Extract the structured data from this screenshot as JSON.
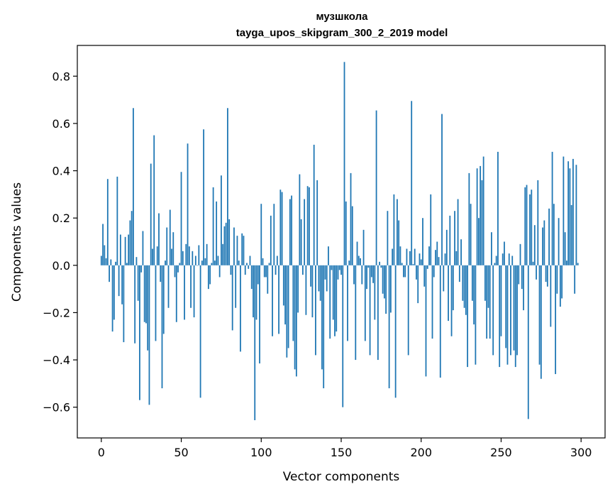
{
  "chart_data": {
    "type": "bar",
    "title_lines": [
      "музшкола",
      "tayga_upos_skipgram_300_2_2019 model"
    ],
    "xlabel": "Vector components",
    "ylabel": "Components values",
    "xlim": [
      -15,
      315
    ],
    "ylim": [
      -0.73,
      0.93
    ],
    "xticks": [
      0,
      50,
      100,
      150,
      200,
      250,
      300
    ],
    "yticks": [
      -0.6,
      -0.4,
      -0.2,
      0.0,
      0.2,
      0.4,
      0.6,
      0.8
    ],
    "ytick_labels": [
      "−0.6",
      "−0.4",
      "−0.2",
      "0.0",
      "0.2",
      "0.4",
      "0.6",
      "0.8"
    ],
    "xtick_labels": [
      "0",
      "50",
      "100",
      "150",
      "200",
      "250",
      "300"
    ],
    "color": "#1f77b4",
    "values": [
      0.04,
      0.175,
      0.085,
      0.03,
      0.365,
      -0.07,
      0.025,
      -0.28,
      -0.23,
      0.015,
      0.375,
      -0.13,
      0.13,
      -0.165,
      -0.325,
      0.12,
      0.01,
      0.13,
      0.19,
      0.23,
      0.665,
      -0.33,
      0.035,
      -0.15,
      -0.57,
      -0.03,
      0.145,
      -0.24,
      -0.245,
      -0.36,
      -0.59,
      0.43,
      0.07,
      0.55,
      -0.32,
      0.08,
      0.22,
      -0.07,
      -0.52,
      -0.29,
      0.02,
      0.16,
      -0.18,
      0.235,
      0.07,
      0.14,
      -0.05,
      -0.24,
      -0.03,
      0.01,
      0.395,
      0.06,
      -0.23,
      0.09,
      0.515,
      0.08,
      -0.18,
      0.06,
      -0.22,
      0.04,
      0.0,
      0.085,
      -0.56,
      0.02,
      0.575,
      0.03,
      0.09,
      -0.1,
      -0.08,
      0.01,
      0.33,
      0.02,
      0.27,
      0.04,
      -0.05,
      0.38,
      0.09,
      0.165,
      0.18,
      0.665,
      0.195,
      -0.04,
      -0.275,
      0.16,
      -0.18,
      0.125,
      0.02,
      -0.365,
      0.135,
      0.125,
      -0.04,
      0.01,
      -0.015,
      0.04,
      -0.1,
      -0.22,
      -0.655,
      -0.23,
      -0.08,
      -0.415,
      0.26,
      0.03,
      -0.05,
      -0.05,
      -0.12,
      0.01,
      0.21,
      -0.3,
      0.26,
      -0.04,
      0.04,
      -0.29,
      0.32,
      0.31,
      -0.17,
      -0.25,
      -0.39,
      -0.35,
      0.28,
      0.295,
      -0.32,
      -0.44,
      -0.47,
      -0.2,
      0.385,
      0.195,
      -0.04,
      0.28,
      -0.21,
      0.335,
      0.33,
      -0.09,
      -0.22,
      0.51,
      -0.38,
      0.36,
      -0.11,
      -0.15,
      -0.44,
      -0.52,
      -0.06,
      -0.11,
      0.08,
      -0.31,
      -0.02,
      -0.23,
      -0.3,
      -0.28,
      -0.06,
      -0.02,
      -0.04,
      -0.6,
      0.86,
      0.27,
      -0.32,
      0.02,
      0.39,
      0.25,
      -0.08,
      -0.4,
      0.1,
      0.04,
      0.03,
      -0.08,
      0.15,
      -0.32,
      -0.1,
      -0.01,
      -0.38,
      -0.05,
      -0.075,
      -0.23,
      0.655,
      -0.4,
      0.015,
      -0.01,
      -0.12,
      -0.14,
      -0.205,
      0.23,
      -0.52,
      -0.2,
      0.07,
      0.3,
      -0.56,
      0.28,
      0.19,
      0.08,
      0.01,
      -0.05,
      -0.05,
      0.07,
      -0.38,
      0.06,
      0.695,
      0.005,
      0.07,
      -0.06,
      -0.16,
      0.05,
      0.025,
      0.2,
      -0.09,
      -0.47,
      -0.015,
      0.08,
      0.3,
      -0.31,
      -0.05,
      0.065,
      0.1,
      0.035,
      -0.475,
      0.64,
      -0.11,
      0.05,
      0.15,
      -0.235,
      0.21,
      -0.3,
      -0.19,
      0.23,
      0.06,
      0.28,
      -0.07,
      0.11,
      -0.15,
      -0.18,
      -0.21,
      -0.43,
      0.39,
      0.26,
      -0.15,
      -0.25,
      -0.42,
      0.41,
      0.2,
      0.42,
      0.36,
      0.46,
      -0.15,
      -0.31,
      -0.18,
      -0.31,
      0.14,
      -0.38,
      0.01,
      0.04,
      0.48,
      -0.43,
      -0.3,
      0.05,
      0.1,
      -0.35,
      -0.42,
      0.05,
      -0.38,
      0.04,
      -0.36,
      -0.43,
      -0.38,
      -0.08,
      0.09,
      -0.1,
      -0.19,
      0.33,
      0.34,
      -0.65,
      0.3,
      0.32,
      0.015,
      0.17,
      -0.06,
      0.36,
      -0.42,
      -0.48,
      0.16,
      0.19,
      -0.07,
      -0.09,
      0.24,
      -0.26,
      0.48,
      0.26,
      -0.46,
      -0.12,
      0.2,
      -0.175,
      -0.14,
      0.46,
      0.14,
      0.02,
      0.44,
      0.41,
      0.255,
      0.45,
      -0.12,
      0.425,
      0.01
    ]
  }
}
